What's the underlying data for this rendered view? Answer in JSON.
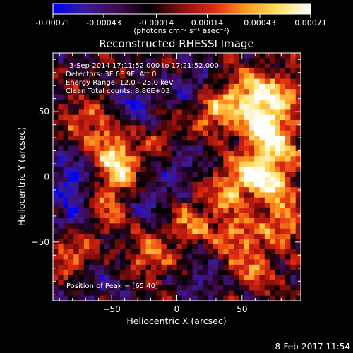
{
  "colorbar": {
    "tick_labels": [
      "-0.00071",
      "-0.00043",
      "-0.00014",
      "0.00014",
      "0.00043",
      "0.00071"
    ],
    "tick_values": [
      -0.00071,
      -0.00043,
      -0.00014,
      0.00014,
      0.00043,
      0.00071
    ],
    "range": [
      -0.00071,
      0.00071
    ],
    "units_label": "(photons cm⁻² s⁻¹ asec⁻²)"
  },
  "info": {
    "time_range": "3-Sep-2014 17:11:52.000 to 17:21:52.000",
    "detectors": "Detectors: 3F 6F 9F, Att 0",
    "energy_range": "Energy Range: 12.0 - 25.0 keV",
    "clean_counts": "Clean     Total counts: 8.86E+03",
    "peak_position": "Position of Peak = [65,40]"
  },
  "footer": {
    "timestamp": "8-Feb-2017 11:54"
  },
  "colors": {
    "background": "#000000",
    "axes": "#ffffff",
    "colormap": [
      "#0000ff",
      "#3a1a9a",
      "#400a50",
      "#000000",
      "#8a0e0e",
      "#e02a10",
      "#ff9a20",
      "#ffe060",
      "#ffffff"
    ]
  },
  "chart_data": {
    "type": "heatmap",
    "title": "Reconstructed RHESSI Image",
    "xlabel": "Heliocentric X (arcsec)",
    "ylabel": "Heliocentric Y (arcsec)",
    "xlim": [
      -95,
      95
    ],
    "ylim": [
      -95,
      95
    ],
    "x_ticks": [
      -50,
      0,
      50
    ],
    "y_ticks": [
      -50,
      0,
      50
    ],
    "x_tick_labels": [
      "−50",
      "0",
      "50"
    ],
    "y_tick_labels": [
      "−50",
      "0",
      "50"
    ],
    "grid": false,
    "colorbar": "top",
    "grid_shape": [
      48,
      48
    ],
    "peak_position": [
      65,
      40
    ],
    "bright_regions": [
      {
        "x": 65,
        "y": 40,
        "strength": 1.0
      },
      {
        "x": 55,
        "y": 65,
        "strength": 0.85
      },
      {
        "x": 30,
        "y": 50,
        "strength": 0.8
      },
      {
        "x": 80,
        "y": 62,
        "strength": 0.75
      },
      {
        "x": 80,
        "y": 25,
        "strength": 0.7
      },
      {
        "x": 60,
        "y": 5,
        "strength": 0.85
      },
      {
        "x": 40,
        "y": -10,
        "strength": 0.7
      },
      {
        "x": 75,
        "y": -5,
        "strength": 0.7
      },
      {
        "x": 80,
        "y": -35,
        "strength": 0.7
      },
      {
        "x": 45,
        "y": -45,
        "strength": 0.65
      },
      {
        "x": 10,
        "y": -35,
        "strength": 0.6
      },
      {
        "x": -45,
        "y": 5,
        "strength": 0.85
      },
      {
        "x": -50,
        "y": 25,
        "strength": 0.6
      },
      {
        "x": -55,
        "y": -25,
        "strength": 0.55
      },
      {
        "x": -70,
        "y": 45,
        "strength": 0.5
      },
      {
        "x": -80,
        "y": -60,
        "strength": 0.6
      },
      {
        "x": -20,
        "y": -60,
        "strength": 0.55
      },
      {
        "x": 60,
        "y": -70,
        "strength": 0.55
      },
      {
        "x": -10,
        "y": 30,
        "strength": 0.4
      }
    ],
    "dark_regions": [
      {
        "x": -30,
        "y": 55,
        "strength": 0.7
      },
      {
        "x": -80,
        "y": 0,
        "strength": 0.8
      },
      {
        "x": -80,
        "y": -30,
        "strength": 0.7
      },
      {
        "x": -20,
        "y": -20,
        "strength": 0.6
      },
      {
        "x": 0,
        "y": 10,
        "strength": 0.6
      },
      {
        "x": 20,
        "y": -80,
        "strength": 0.5
      },
      {
        "x": 10,
        "y": 70,
        "strength": 0.55
      },
      {
        "x": -60,
        "y": -80,
        "strength": 0.5
      }
    ]
  }
}
